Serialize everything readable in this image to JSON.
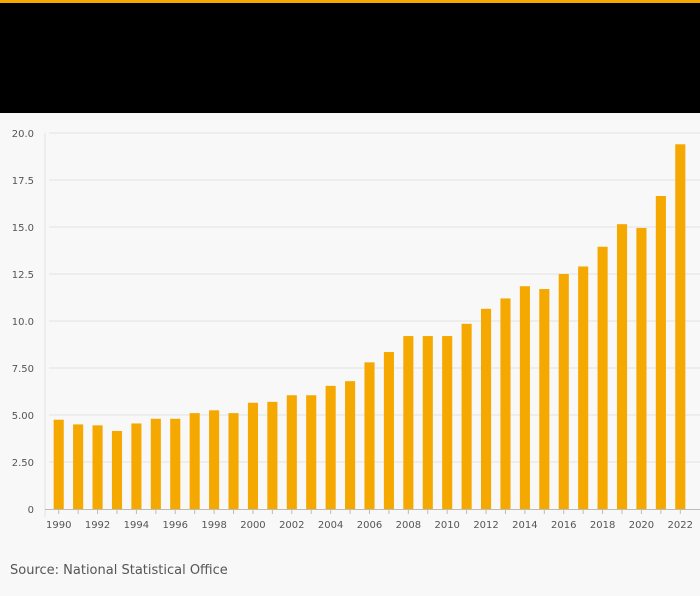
{
  "colors": {
    "accent": "#F5A800",
    "bar": "#F5A800",
    "header": "#000000",
    "grid": "#e2e2e2",
    "axis": "#bbbbbb"
  },
  "source": "Source: National Statistical Office",
  "chart_data": {
    "type": "bar",
    "title": "",
    "xlabel": "",
    "ylabel": "",
    "ylim": [
      0,
      20
    ],
    "y_ticks": [
      "0",
      "2.50",
      "5.00",
      "7.50",
      "10.0",
      "12.5",
      "15.0",
      "17.5",
      "20.0"
    ],
    "y_tick_values": [
      0,
      2.5,
      5,
      7.5,
      10,
      12.5,
      15,
      17.5,
      20
    ],
    "x_tick_labels": [
      "1990",
      "1992",
      "1994",
      "1996",
      "1998",
      "2000",
      "2002",
      "2004",
      "2006",
      "2008",
      "2010",
      "2012",
      "2014",
      "2016",
      "2018",
      "2020",
      "2022"
    ],
    "categories": [
      "1990",
      "1991",
      "1992",
      "1993",
      "1994",
      "1995",
      "1996",
      "1997",
      "1998",
      "1999",
      "2000",
      "2001",
      "2002",
      "2003",
      "2004",
      "2005",
      "2006",
      "2007",
      "2008",
      "2009",
      "2010",
      "2011",
      "2012",
      "2013",
      "2014",
      "2015",
      "2016",
      "2017",
      "2018",
      "2019",
      "2020",
      "2021",
      "2022"
    ],
    "values": [
      4.75,
      4.5,
      4.45,
      4.15,
      4.55,
      4.8,
      4.8,
      5.1,
      5.25,
      5.1,
      5.65,
      5.7,
      6.05,
      6.05,
      6.55,
      6.8,
      7.8,
      8.35,
      9.2,
      9.2,
      9.2,
      9.85,
      10.65,
      11.2,
      11.85,
      11.7,
      12.5,
      12.9,
      13.95,
      15.15,
      14.95,
      16.65,
      19.4
    ]
  }
}
